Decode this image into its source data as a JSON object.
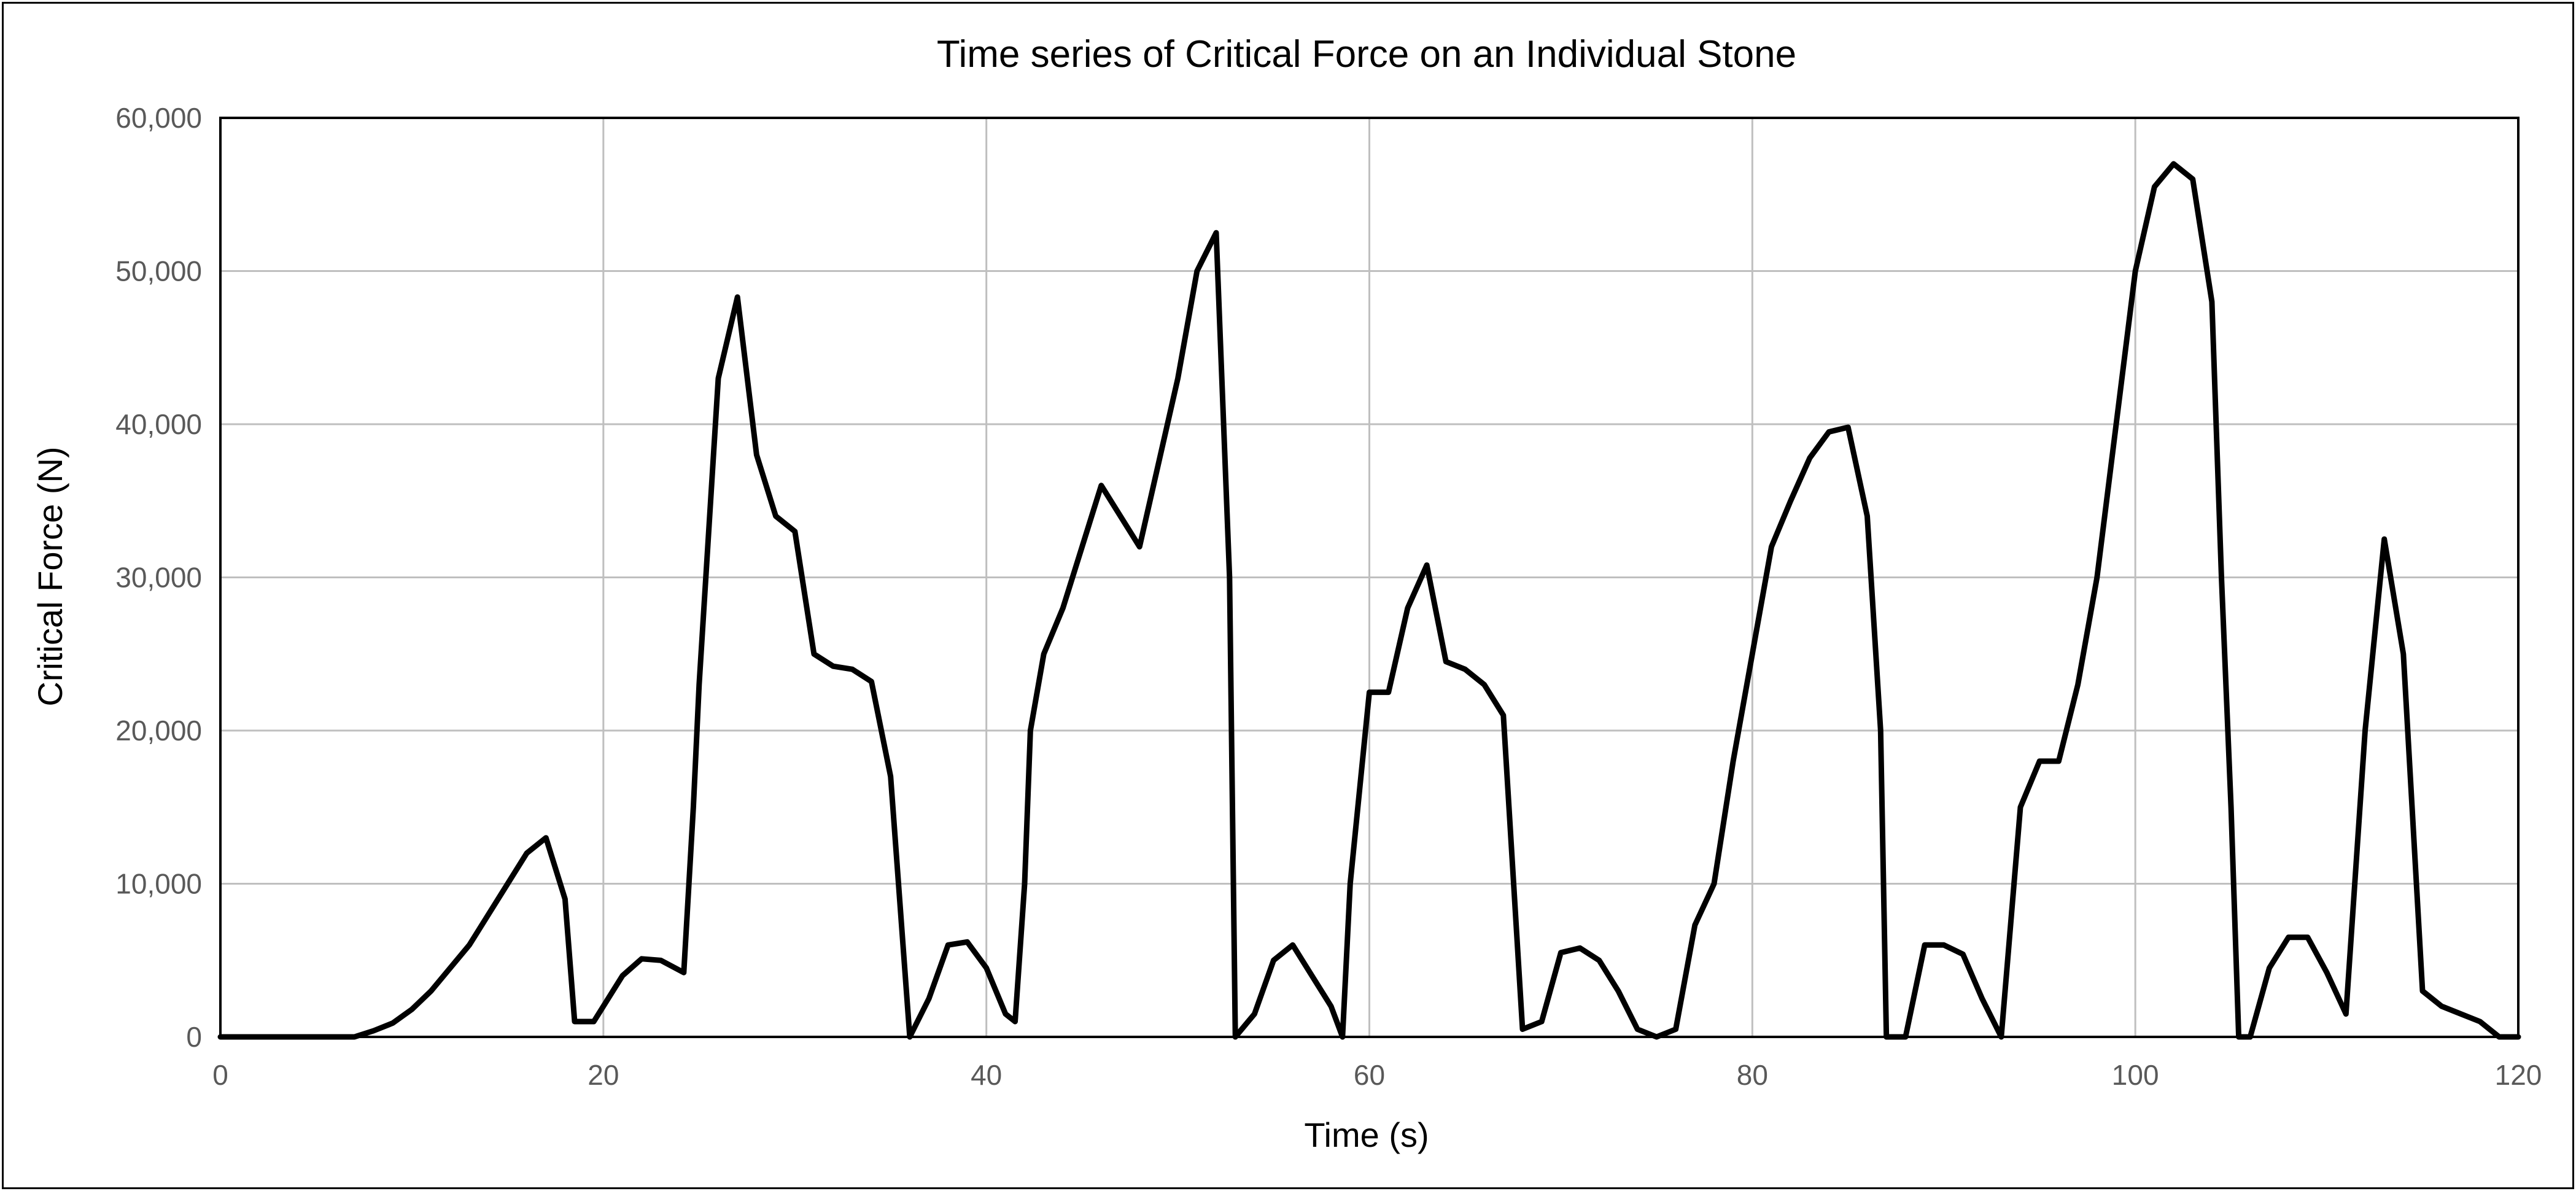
{
  "chart_data": {
    "type": "line",
    "title": "Time series of Critical Force on an Individual Stone",
    "xlabel": "Time (s)",
    "ylabel": "Critical Force (N)",
    "xlim": [
      0,
      120
    ],
    "ylim": [
      0,
      60000
    ],
    "x_ticks": [
      0,
      20,
      40,
      60,
      80,
      100,
      120
    ],
    "x_tick_labels": [
      "0",
      "20",
      "40",
      "60",
      "80",
      "100",
      "120"
    ],
    "y_ticks": [
      0,
      10000,
      20000,
      30000,
      40000,
      50000,
      60000
    ],
    "y_tick_labels": [
      "0",
      "10,000",
      "20,000",
      "30,000",
      "40,000",
      "50,000",
      "60,000"
    ],
    "grid": true,
    "legend": "none",
    "series": [
      {
        "color": "#000000",
        "points": [
          [
            0,
            0
          ],
          [
            1,
            0
          ],
          [
            2,
            0
          ],
          [
            3,
            0
          ],
          [
            4,
            0
          ],
          [
            5,
            0
          ],
          [
            6,
            0
          ],
          [
            7,
            0
          ],
          [
            8,
            400
          ],
          [
            9,
            900
          ],
          [
            10,
            1800
          ],
          [
            11,
            3000
          ],
          [
            12,
            4500
          ],
          [
            13,
            6000
          ],
          [
            14,
            8000
          ],
          [
            15,
            10000
          ],
          [
            16,
            12000
          ],
          [
            17,
            13000
          ],
          [
            18,
            9000
          ],
          [
            18.5,
            1000
          ],
          [
            19.5,
            1000
          ],
          [
            21,
            4000
          ],
          [
            22,
            5100
          ],
          [
            23,
            5000
          ],
          [
            24.2,
            4200
          ],
          [
            24.7,
            15000
          ],
          [
            25,
            23000
          ],
          [
            26,
            43000
          ],
          [
            27,
            48300
          ],
          [
            28,
            38000
          ],
          [
            29,
            34000
          ],
          [
            30,
            33000
          ],
          [
            31,
            25000
          ],
          [
            32,
            24200
          ],
          [
            33,
            24000
          ],
          [
            34,
            23200
          ],
          [
            35,
            17000
          ],
          [
            36,
            0
          ],
          [
            37,
            2500
          ],
          [
            38,
            6000
          ],
          [
            39,
            6200
          ],
          [
            40,
            4500
          ],
          [
            41,
            1500
          ],
          [
            41.5,
            1000
          ],
          [
            42,
            10000
          ],
          [
            42.3,
            20000
          ],
          [
            43,
            25000
          ],
          [
            44,
            28000
          ],
          [
            45,
            32000
          ],
          [
            46,
            36000
          ],
          [
            48,
            32000
          ],
          [
            50,
            43000
          ],
          [
            51,
            50000
          ],
          [
            52,
            52500
          ],
          [
            52.7,
            30000
          ],
          [
            53,
            0
          ],
          [
            54,
            1500
          ],
          [
            55,
            5000
          ],
          [
            56,
            6000
          ],
          [
            57,
            4000
          ],
          [
            58,
            2000
          ],
          [
            58.6,
            0
          ],
          [
            59,
            10000
          ],
          [
            60,
            22500
          ],
          [
            61,
            22500
          ],
          [
            62,
            28000
          ],
          [
            63,
            30800
          ],
          [
            64,
            24500
          ],
          [
            65,
            24000
          ],
          [
            66,
            23000
          ],
          [
            67,
            21000
          ],
          [
            68,
            500
          ],
          [
            69,
            1000
          ],
          [
            70,
            5500
          ],
          [
            71,
            5800
          ],
          [
            72,
            5000
          ],
          [
            73,
            3000
          ],
          [
            74,
            500
          ],
          [
            75,
            0
          ],
          [
            76,
            500
          ],
          [
            77,
            7300
          ],
          [
            78,
            10000
          ],
          [
            79,
            18000
          ],
          [
            80,
            25000
          ],
          [
            81,
            32000
          ],
          [
            82,
            35000
          ],
          [
            83,
            37800
          ],
          [
            84,
            39500
          ],
          [
            85,
            39800
          ],
          [
            86,
            34000
          ],
          [
            86.7,
            20000
          ],
          [
            87,
            0
          ],
          [
            88,
            0
          ],
          [
            89,
            6000
          ],
          [
            90,
            6000
          ],
          [
            91,
            5400
          ],
          [
            92,
            2500
          ],
          [
            93,
            0
          ],
          [
            94,
            15000
          ],
          [
            95,
            18000
          ],
          [
            96,
            18000
          ],
          [
            97,
            23000
          ],
          [
            98,
            30000
          ],
          [
            99,
            40000
          ],
          [
            100,
            50000
          ],
          [
            101,
            55500
          ],
          [
            102,
            57000
          ],
          [
            103,
            56000
          ],
          [
            104,
            48000
          ],
          [
            104.5,
            30000
          ],
          [
            105,
            15000
          ],
          [
            105.4,
            0
          ],
          [
            106,
            0
          ],
          [
            107,
            4500
          ],
          [
            108,
            6500
          ],
          [
            109,
            6500
          ],
          [
            110,
            4200
          ],
          [
            111,
            1500
          ],
          [
            112,
            20000
          ],
          [
            113,
            32500
          ],
          [
            114,
            25000
          ],
          [
            115,
            3000
          ],
          [
            116,
            2000
          ],
          [
            117,
            1500
          ],
          [
            118,
            1000
          ],
          [
            119,
            0
          ],
          [
            120,
            0
          ]
        ]
      }
    ]
  }
}
